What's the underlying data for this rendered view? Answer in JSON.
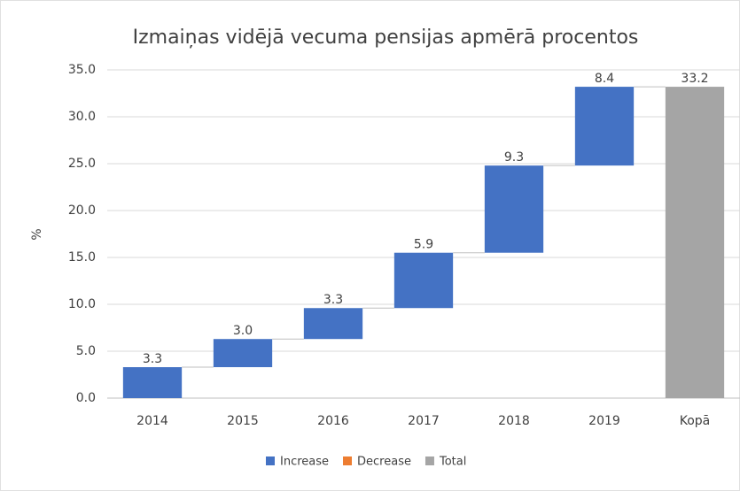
{
  "chart_data": {
    "type": "waterfall",
    "title": "Izmaiņas vidējā vecuma pensijas apmērā procentos",
    "y_label": "%",
    "categories": [
      "2014",
      "2015",
      "2016",
      "2017",
      "2018",
      "2019",
      "Kopā"
    ],
    "series": [
      {
        "name": "Increase",
        "color": "#4472c4",
        "values": [
          3.3,
          3.0,
          3.3,
          5.9,
          9.3,
          8.4,
          null
        ],
        "value_labels": [
          "3.3",
          "3.0",
          "3.3",
          "5.9",
          "9.3",
          "8.4",
          null
        ]
      },
      {
        "name": "Decrease",
        "color": "#ed7d31",
        "values": [
          null,
          null,
          null,
          null,
          null,
          null,
          null
        ]
      },
      {
        "name": "Total",
        "color": "#a5a5a5",
        "values": [
          null,
          null,
          null,
          null,
          null,
          null,
          33.2
        ],
        "value_labels": [
          null,
          null,
          null,
          null,
          null,
          null,
          "33.2"
        ]
      }
    ],
    "ylim": [
      0,
      35
    ],
    "yticks": [
      {
        "value": 0,
        "label": "0.0"
      },
      {
        "value": 5,
        "label": "5.0"
      },
      {
        "value": 10,
        "label": "10.0"
      },
      {
        "value": 15,
        "label": "15.0"
      },
      {
        "value": 20,
        "label": "20.0"
      },
      {
        "value": 25,
        "label": "25.0"
      },
      {
        "value": 30,
        "label": "30.0"
      },
      {
        "value": 35,
        "label": "35.0"
      }
    ],
    "grid": true
  }
}
